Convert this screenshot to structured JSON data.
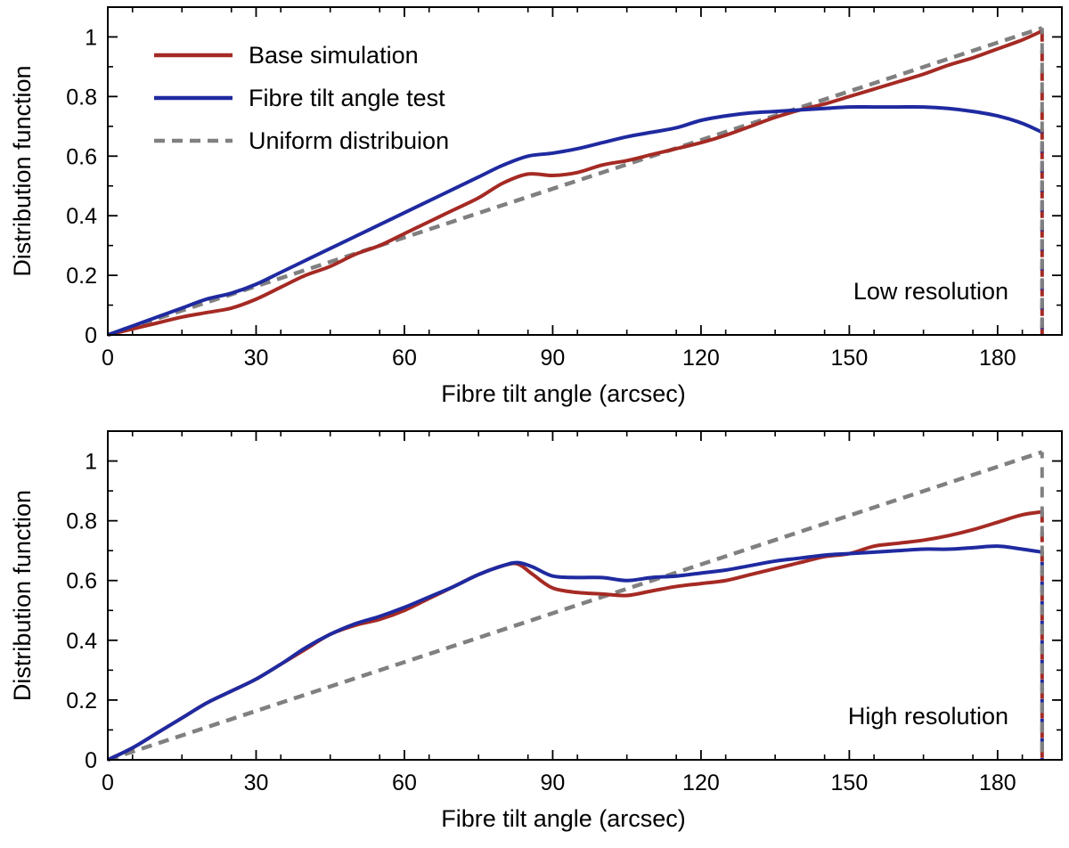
{
  "chart_data": [
    {
      "type": "line",
      "annotation": "Low resolution",
      "xlabel": "Fibre tilt angle  (arcsec)",
      "ylabel": "Distribution function",
      "xlim": [
        0,
        193
      ],
      "ylim": [
        0,
        1.1
      ],
      "xticks": [
        0,
        30,
        60,
        90,
        120,
        150,
        180
      ],
      "xtick_labels": [
        "0",
        "30",
        "60",
        "90",
        "120",
        "150",
        "180"
      ],
      "yticks": [
        0,
        0.2,
        0.4,
        0.6,
        0.8,
        1
      ],
      "ytick_labels": [
        "0",
        "0.2",
        "0.4",
        "0.6",
        "0.8",
        "1"
      ],
      "legend_position": "top-left",
      "series": [
        {
          "name": "Base simulation",
          "color": "#a52a24",
          "style": "solid",
          "x": [
            0,
            5,
            10,
            15,
            20,
            25,
            30,
            35,
            40,
            45,
            50,
            55,
            60,
            65,
            70,
            75,
            80,
            85,
            90,
            95,
            100,
            105,
            110,
            115,
            120,
            125,
            130,
            135,
            140,
            145,
            150,
            155,
            160,
            165,
            170,
            175,
            180,
            185,
            189
          ],
          "y": [
            0.0,
            0.02,
            0.04,
            0.06,
            0.075,
            0.09,
            0.12,
            0.16,
            0.2,
            0.23,
            0.27,
            0.3,
            0.34,
            0.38,
            0.42,
            0.46,
            0.51,
            0.54,
            0.535,
            0.545,
            0.57,
            0.585,
            0.605,
            0.625,
            0.645,
            0.67,
            0.7,
            0.73,
            0.755,
            0.775,
            0.8,
            0.825,
            0.85,
            0.875,
            0.905,
            0.93,
            0.96,
            0.99,
            1.02
          ]
        },
        {
          "name": "Fibre tilt angle test",
          "color": "#1f2aa0",
          "style": "solid",
          "x": [
            0,
            5,
            10,
            15,
            20,
            25,
            30,
            35,
            40,
            45,
            50,
            55,
            60,
            65,
            70,
            75,
            80,
            85,
            90,
            95,
            100,
            105,
            110,
            115,
            120,
            125,
            130,
            135,
            140,
            145,
            150,
            155,
            160,
            165,
            170,
            175,
            180,
            185,
            189
          ],
          "y": [
            0.0,
            0.03,
            0.06,
            0.09,
            0.12,
            0.14,
            0.17,
            0.21,
            0.25,
            0.29,
            0.33,
            0.37,
            0.41,
            0.45,
            0.49,
            0.53,
            0.57,
            0.6,
            0.61,
            0.625,
            0.645,
            0.665,
            0.68,
            0.695,
            0.72,
            0.735,
            0.745,
            0.75,
            0.755,
            0.76,
            0.765,
            0.765,
            0.765,
            0.765,
            0.76,
            0.75,
            0.735,
            0.71,
            0.68
          ]
        },
        {
          "name": "Uniform distribuion",
          "color": "#808080",
          "style": "dashed",
          "x": [
            0,
            189
          ],
          "y": [
            0.0,
            1.03
          ]
        }
      ]
    },
    {
      "type": "line",
      "annotation": "High resolution",
      "xlabel": "Fibre tilt angle  (arcsec)",
      "ylabel": "Distribution function",
      "xlim": [
        0,
        193
      ],
      "ylim": [
        0,
        1.1
      ],
      "xticks": [
        0,
        30,
        60,
        90,
        120,
        150,
        180
      ],
      "xtick_labels": [
        "0",
        "30",
        "60",
        "90",
        "120",
        "150",
        "180"
      ],
      "yticks": [
        0,
        0.2,
        0.4,
        0.6,
        0.8,
        1
      ],
      "ytick_labels": [
        "0",
        "0.2",
        "0.4",
        "0.6",
        "0.8",
        "1"
      ],
      "series": [
        {
          "name": "Base simulation",
          "color": "#a52a24",
          "style": "solid",
          "x": [
            0,
            5,
            10,
            15,
            20,
            25,
            30,
            35,
            40,
            45,
            50,
            55,
            60,
            65,
            70,
            75,
            80,
            83,
            86,
            90,
            95,
            100,
            105,
            110,
            115,
            120,
            125,
            130,
            135,
            140,
            145,
            150,
            155,
            160,
            165,
            170,
            175,
            180,
            185,
            189
          ],
          "y": [
            0.0,
            0.04,
            0.09,
            0.14,
            0.19,
            0.23,
            0.27,
            0.32,
            0.37,
            0.42,
            0.45,
            0.47,
            0.5,
            0.54,
            0.58,
            0.62,
            0.65,
            0.655,
            0.62,
            0.575,
            0.56,
            0.555,
            0.55,
            0.565,
            0.58,
            0.59,
            0.6,
            0.62,
            0.64,
            0.66,
            0.68,
            0.69,
            0.715,
            0.725,
            0.735,
            0.75,
            0.77,
            0.795,
            0.82,
            0.83
          ]
        },
        {
          "name": "Fibre tilt angle test",
          "color": "#1f2aa0",
          "style": "solid",
          "x": [
            0,
            5,
            10,
            15,
            20,
            25,
            30,
            35,
            40,
            45,
            50,
            55,
            60,
            65,
            70,
            75,
            80,
            83,
            86,
            90,
            95,
            100,
            105,
            110,
            115,
            120,
            125,
            130,
            135,
            140,
            145,
            150,
            155,
            160,
            165,
            170,
            175,
            180,
            185,
            189
          ],
          "y": [
            0.0,
            0.04,
            0.09,
            0.14,
            0.19,
            0.23,
            0.27,
            0.32,
            0.375,
            0.42,
            0.455,
            0.48,
            0.51,
            0.545,
            0.58,
            0.62,
            0.65,
            0.66,
            0.645,
            0.615,
            0.61,
            0.61,
            0.6,
            0.61,
            0.615,
            0.625,
            0.635,
            0.65,
            0.665,
            0.675,
            0.685,
            0.69,
            0.695,
            0.7,
            0.705,
            0.705,
            0.71,
            0.715,
            0.705,
            0.695
          ]
        },
        {
          "name": "Uniform distribuion",
          "color": "#808080",
          "style": "dashed",
          "x": [
            0,
            189
          ],
          "y": [
            0.0,
            1.03
          ]
        }
      ]
    }
  ]
}
